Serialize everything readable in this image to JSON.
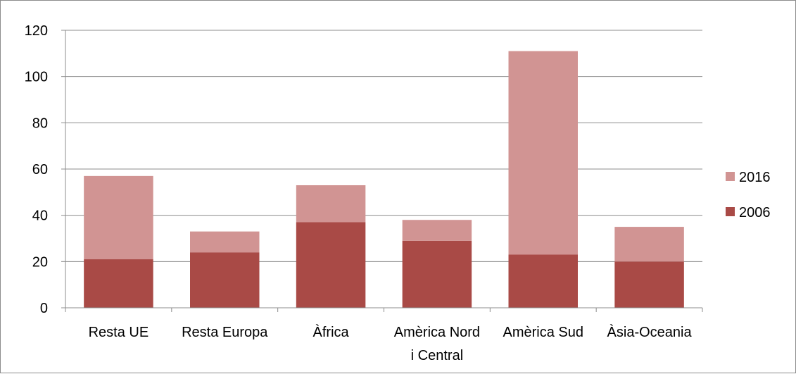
{
  "chart_data": {
    "type": "bar",
    "stacked": true,
    "categories": [
      [
        "Resta UE"
      ],
      [
        "Resta Europa"
      ],
      [
        "Àfrica"
      ],
      [
        "Amèrica Nord",
        "i Central"
      ],
      [
        "Amèrica Sud"
      ],
      [
        "Àsia-Oceania"
      ]
    ],
    "series": [
      {
        "name": "2006",
        "color": "#a94a46",
        "values": [
          21,
          24,
          37,
          29,
          23,
          20
        ]
      },
      {
        "name": "2016",
        "color": "#d19493",
        "values": [
          36,
          9,
          16,
          9,
          88,
          15
        ]
      }
    ],
    "y_ticks": [
      "0",
      "20",
      "40",
      "60",
      "80",
      "100",
      "120"
    ],
    "ylim": [
      0,
      120
    ],
    "grid": true,
    "legend": {
      "position": "right",
      "order": [
        "2016",
        "2006"
      ]
    }
  }
}
